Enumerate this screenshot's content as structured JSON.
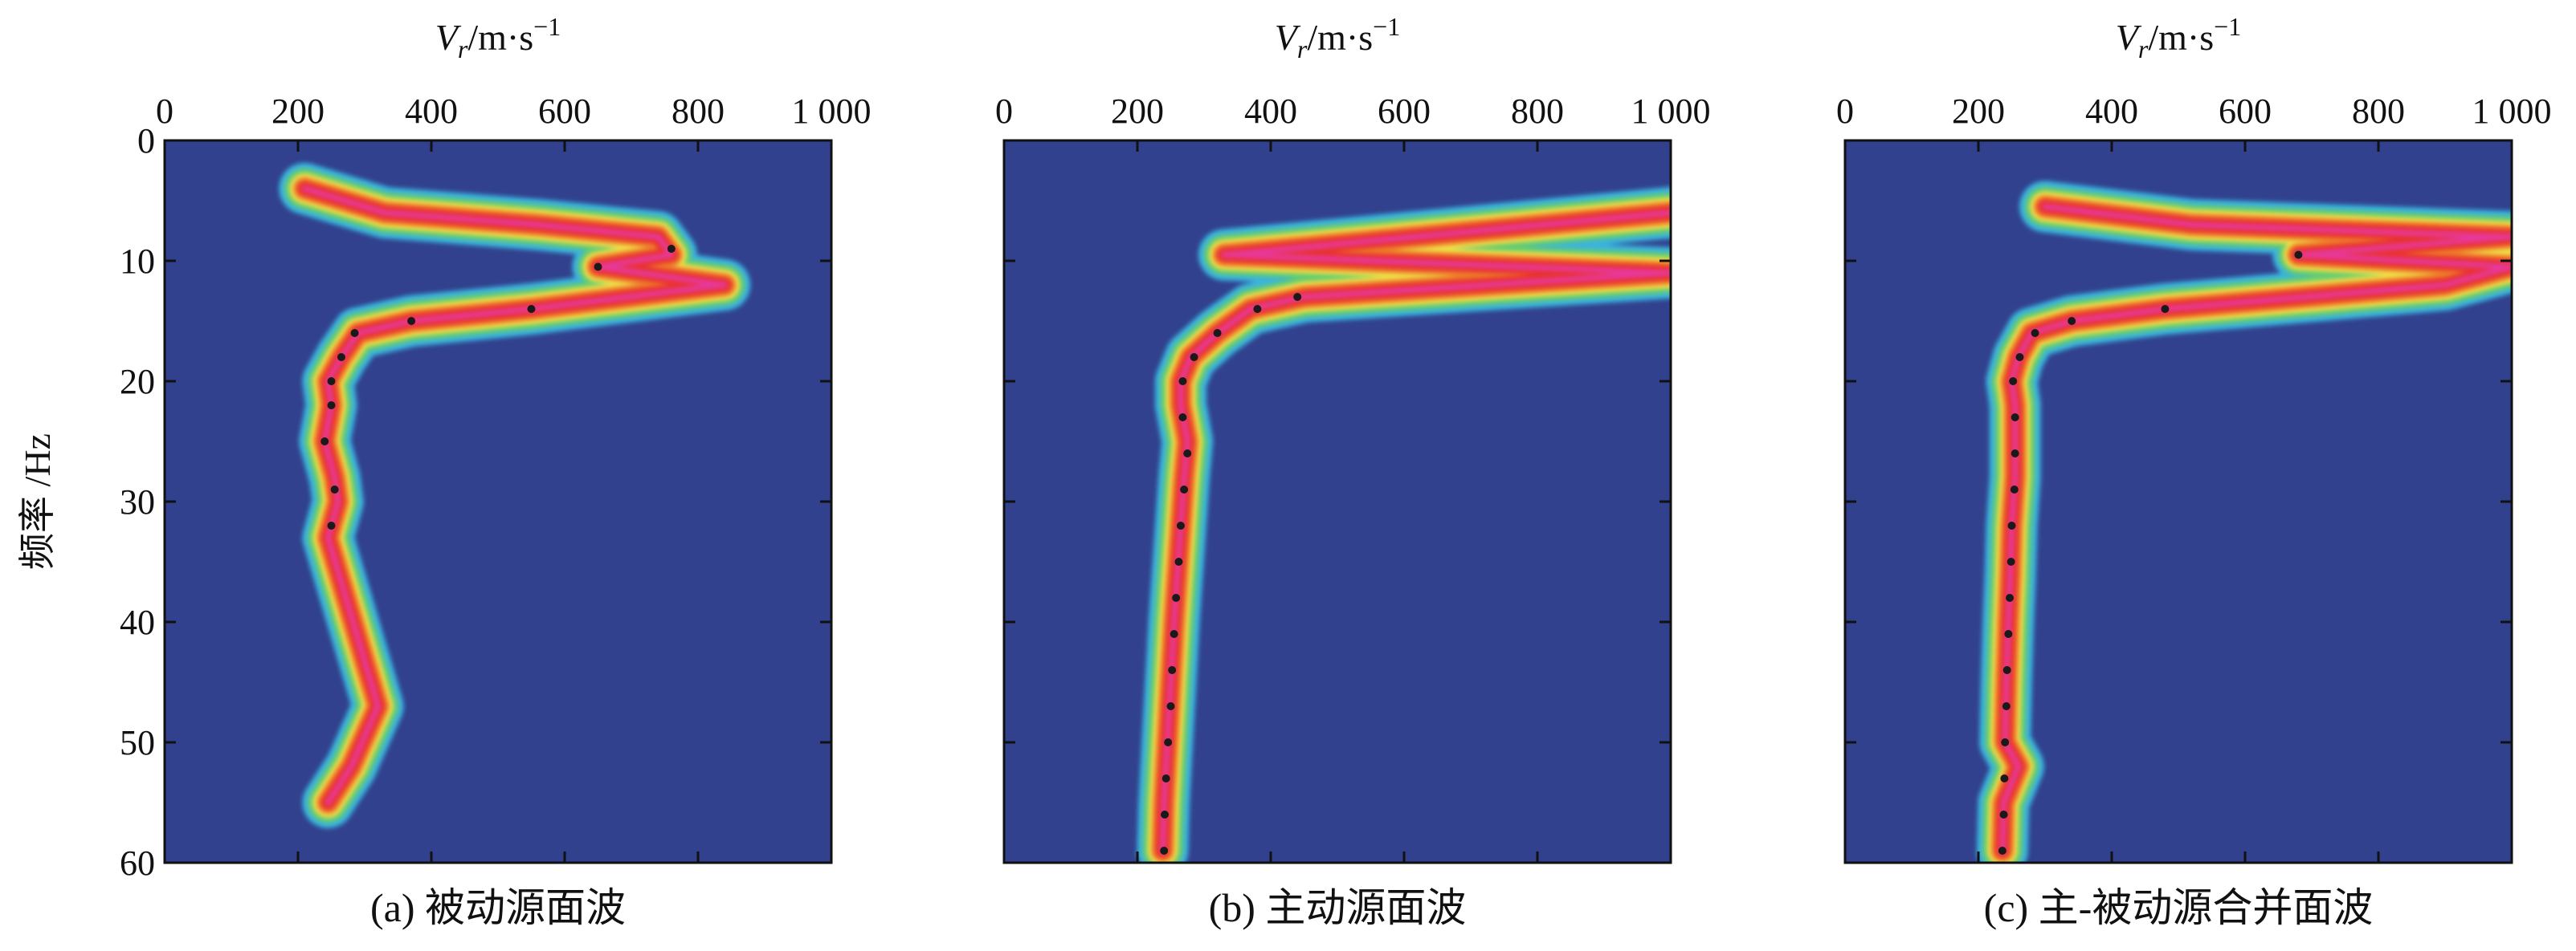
{
  "figure": {
    "ylabel": "频率 /Hz",
    "xlabel_main": "V",
    "xlabel_sub": "r",
    "xlabel_rest": "/m·s",
    "xlabel_sup": "−1"
  },
  "chart_data": [
    {
      "type": "heatmap",
      "id": "a",
      "caption": "(a) 被动源面波",
      "xlabel": "Vr/m·s−1",
      "ylabel": "频率 /Hz",
      "xlim": [
        0,
        1000
      ],
      "ylim": [
        0,
        60
      ],
      "y_inverted": true,
      "x_ticks": [
        0,
        200,
        400,
        600,
        800,
        1000
      ],
      "x_tick_labels": [
        "0",
        "200",
        "400",
        "600",
        "800",
        "1 000"
      ],
      "y_ticks": [
        0,
        10,
        20,
        30,
        40,
        50,
        60
      ],
      "y_tick_labels": [
        "0",
        "10",
        "20",
        "30",
        "40",
        "50",
        "60"
      ],
      "background_color": "#31418e",
      "colormap": [
        "#31418e",
        "#3ab3dd",
        "#63cc70",
        "#f0e04a",
        "#ee7b2a",
        "#e8322e",
        "#e8389a"
      ],
      "energy_ridge": [
        {
          "f": 4,
          "v": 210
        },
        {
          "f": 6,
          "v": 330
        },
        {
          "f": 7,
          "v": 560
        },
        {
          "f": 8,
          "v": 740
        },
        {
          "f": 9.5,
          "v": 760
        },
        {
          "f": 10.5,
          "v": 650
        },
        {
          "f": 12,
          "v": 840
        },
        {
          "f": 14,
          "v": 550
        },
        {
          "f": 15,
          "v": 370
        },
        {
          "f": 16,
          "v": 290
        },
        {
          "f": 18,
          "v": 265
        },
        {
          "f": 20,
          "v": 245
        },
        {
          "f": 22,
          "v": 250
        },
        {
          "f": 25,
          "v": 240
        },
        {
          "f": 28,
          "v": 255
        },
        {
          "f": 30,
          "v": 260
        },
        {
          "f": 32,
          "v": 250
        },
        {
          "f": 33,
          "v": 245
        },
        {
          "f": 47,
          "v": 320
        },
        {
          "f": 52,
          "v": 280
        },
        {
          "f": 55,
          "v": 245
        }
      ],
      "picked_points": [
        {
          "f": 9,
          "v": 760
        },
        {
          "f": 10.5,
          "v": 650
        },
        {
          "f": 14,
          "v": 550
        },
        {
          "f": 15,
          "v": 370
        },
        {
          "f": 16,
          "v": 285
        },
        {
          "f": 18,
          "v": 265
        },
        {
          "f": 20,
          "v": 250
        },
        {
          "f": 22,
          "v": 250
        },
        {
          "f": 25,
          "v": 240
        },
        {
          "f": 29,
          "v": 255
        },
        {
          "f": 32,
          "v": 250
        }
      ]
    },
    {
      "type": "heatmap",
      "id": "b",
      "caption": "(b) 主动源面波",
      "xlabel": "Vr/m·s−1",
      "ylabel": "频率 /Hz",
      "xlim": [
        0,
        1000
      ],
      "ylim": [
        0,
        60
      ],
      "y_inverted": true,
      "x_ticks": [
        0,
        200,
        400,
        600,
        800,
        1000
      ],
      "x_tick_labels": [
        "0",
        "200",
        "400",
        "600",
        "800",
        "1 000"
      ],
      "y_ticks": [
        0,
        10,
        20,
        30,
        40,
        50,
        60
      ],
      "y_tick_labels": [
        "0",
        "10",
        "20",
        "30",
        "40",
        "50",
        "60"
      ],
      "background_color": "#31418e",
      "colormap": [
        "#31418e",
        "#3ab3dd",
        "#63cc70",
        "#f0e04a",
        "#ee7b2a",
        "#e8322e",
        "#e8389a"
      ],
      "energy_ridge": [
        {
          "f": 6,
          "v": 1000
        },
        {
          "f": 9.5,
          "v": 330
        },
        {
          "f": 11,
          "v": 1000
        },
        {
          "f": 13,
          "v": 450
        },
        {
          "f": 14,
          "v": 370
        },
        {
          "f": 16,
          "v": 320
        },
        {
          "f": 18,
          "v": 280
        },
        {
          "f": 20,
          "v": 265
        },
        {
          "f": 22,
          "v": 265
        },
        {
          "f": 25,
          "v": 275
        },
        {
          "f": 28,
          "v": 270
        },
        {
          "f": 32,
          "v": 265
        },
        {
          "f": 36,
          "v": 260
        },
        {
          "f": 40,
          "v": 255
        },
        {
          "f": 45,
          "v": 250
        },
        {
          "f": 50,
          "v": 245
        },
        {
          "f": 55,
          "v": 240
        },
        {
          "f": 59,
          "v": 238
        }
      ],
      "picked_points": [
        {
          "f": 13,
          "v": 440
        },
        {
          "f": 14,
          "v": 380
        },
        {
          "f": 16,
          "v": 320
        },
        {
          "f": 18,
          "v": 285
        },
        {
          "f": 20,
          "v": 268
        },
        {
          "f": 23,
          "v": 268
        },
        {
          "f": 26,
          "v": 275
        },
        {
          "f": 29,
          "v": 270
        },
        {
          "f": 32,
          "v": 265
        },
        {
          "f": 35,
          "v": 262
        },
        {
          "f": 38,
          "v": 258
        },
        {
          "f": 41,
          "v": 255
        },
        {
          "f": 44,
          "v": 252
        },
        {
          "f": 47,
          "v": 250
        },
        {
          "f": 50,
          "v": 246
        },
        {
          "f": 53,
          "v": 243
        },
        {
          "f": 56,
          "v": 241
        },
        {
          "f": 59,
          "v": 240
        }
      ]
    },
    {
      "type": "heatmap",
      "id": "c",
      "caption": "(c) 主-被动源合并面波",
      "xlabel": "Vr/m·s−1",
      "ylabel": "频率 /Hz",
      "xlim": [
        0,
        1000
      ],
      "ylim": [
        0,
        60
      ],
      "y_inverted": true,
      "x_ticks": [
        0,
        200,
        400,
        600,
        800,
        1000
      ],
      "x_tick_labels": [
        "0",
        "200",
        "400",
        "600",
        "800",
        "1 000"
      ],
      "y_ticks": [
        0,
        10,
        20,
        30,
        40,
        50,
        60
      ],
      "y_tick_labels": [
        "0",
        "10",
        "20",
        "30",
        "40",
        "50",
        "60"
      ],
      "background_color": "#31418e",
      "colormap": [
        "#31418e",
        "#3ab3dd",
        "#63cc70",
        "#f0e04a",
        "#ee7b2a",
        "#e8322e",
        "#e8389a"
      ],
      "energy_ridge": [
        {
          "f": 5.5,
          "v": 300
        },
        {
          "f": 7,
          "v": 520
        },
        {
          "f": 8,
          "v": 1000
        },
        {
          "f": 9.5,
          "v": 680
        },
        {
          "f": 10.5,
          "v": 1000
        },
        {
          "f": 12,
          "v": 900
        },
        {
          "f": 14,
          "v": 480
        },
        {
          "f": 15,
          "v": 340
        },
        {
          "f": 16,
          "v": 280
        },
        {
          "f": 18,
          "v": 260
        },
        {
          "f": 20,
          "v": 250
        },
        {
          "f": 22,
          "v": 255
        },
        {
          "f": 25,
          "v": 255
        },
        {
          "f": 28,
          "v": 255
        },
        {
          "f": 32,
          "v": 250
        },
        {
          "f": 36,
          "v": 248
        },
        {
          "f": 40,
          "v": 245
        },
        {
          "f": 45,
          "v": 242
        },
        {
          "f": 50,
          "v": 240
        },
        {
          "f": 52,
          "v": 260
        },
        {
          "f": 55,
          "v": 238
        },
        {
          "f": 59,
          "v": 236
        }
      ],
      "picked_points": [
        {
          "f": 9.5,
          "v": 680
        },
        {
          "f": 14,
          "v": 480
        },
        {
          "f": 15,
          "v": 340
        },
        {
          "f": 16,
          "v": 285
        },
        {
          "f": 18,
          "v": 262
        },
        {
          "f": 20,
          "v": 252
        },
        {
          "f": 23,
          "v": 255
        },
        {
          "f": 26,
          "v": 255
        },
        {
          "f": 29,
          "v": 254
        },
        {
          "f": 32,
          "v": 250
        },
        {
          "f": 35,
          "v": 249
        },
        {
          "f": 38,
          "v": 247
        },
        {
          "f": 41,
          "v": 245
        },
        {
          "f": 44,
          "v": 243
        },
        {
          "f": 47,
          "v": 242
        },
        {
          "f": 50,
          "v": 240
        },
        {
          "f": 53,
          "v": 239
        },
        {
          "f": 56,
          "v": 238
        },
        {
          "f": 59,
          "v": 236
        }
      ]
    }
  ]
}
